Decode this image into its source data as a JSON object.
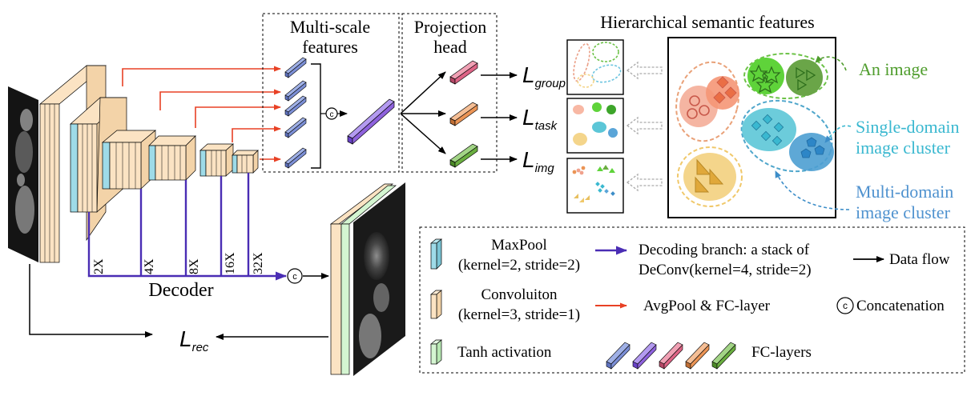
{
  "labels": {
    "multiscale_line1": "Multi-scale",
    "multiscale_line2": "features",
    "projection_line1": "Projection",
    "projection_line2": "head",
    "hierarchical_title": "Hierarchical semantic features",
    "an_image": "An image",
    "single_domain_line1": "Single-domain",
    "single_domain_line2": "image cluster",
    "multi_domain_line1": "Multi-domain",
    "multi_domain_line2": "image cluster",
    "decoder": "Decoder",
    "concat_symbol": "c"
  },
  "losses": {
    "symbol": "L",
    "group": "group",
    "task": "task",
    "img": "img",
    "rec": "rec"
  },
  "upsample_factors": [
    "2X",
    "4X",
    "8X",
    "16X",
    "32X"
  ],
  "legend": {
    "maxpool_line1": "MaxPool",
    "maxpool_line2": "(kernel=2, stride=2)",
    "conv_line1": "Convoluiton",
    "conv_line2": "(kernel=3, stride=1)",
    "tanh": "Tanh activation",
    "decoding_line1": "Decoding branch: a stack of",
    "decoding_line2": "DeConv(kernel=4, stride=2)",
    "avgpool": "AvgPool & FC-layer",
    "dataflow": "Data flow",
    "concatenation": "Concatenation",
    "fc_layers": "FC-layers"
  },
  "colors": {
    "conv": "#fbe3c3",
    "maxpool": "#9edbe8",
    "tanh": "#d4f5d1",
    "decoder": "#4a2db4",
    "avgpool": "#e84125",
    "fc_blue": "#7c8fd6",
    "fc_purple": "#8e62dc",
    "fc_pink": "#de6486",
    "fc_orange": "#eb9455",
    "fc_green": "#6aae40",
    "green_text": "#4f9d2d",
    "cyan_text": "#3ab8d0",
    "blue_text": "#4f92cf",
    "cluster_red": "#f0a18c",
    "cluster_green": "#6cc247",
    "cluster_cyan": "#5cc6d7",
    "cluster_yellow": "#f4d58b"
  }
}
